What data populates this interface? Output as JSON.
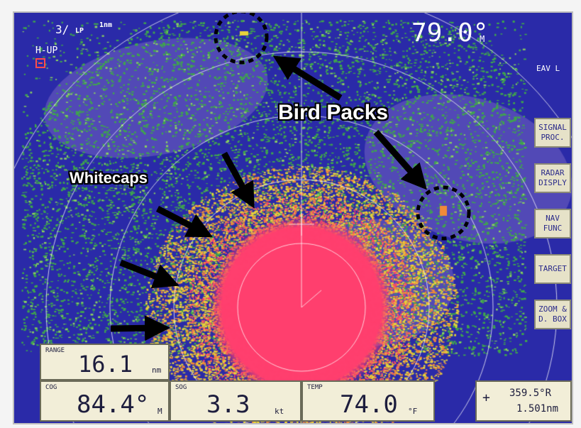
{
  "header": {
    "range_code": "3/",
    "pulse": "LP",
    "range_scale": "1nm",
    "mode": "H-UP",
    "mode_icon": "radar-mode-icon",
    "heading": "79.0°",
    "heading_unit": "M",
    "eav": "EAV L"
  },
  "menu": [
    {
      "line1": "SIGNAL",
      "line2": "PROC."
    },
    {
      "line1": "RADAR",
      "line2": "DISPLY"
    },
    {
      "line1": "NAV",
      "line2": "FUNC"
    },
    {
      "line1": "TARGET",
      "line2": ""
    },
    {
      "line1": "ZOOM &",
      "line2": "D. BOX"
    }
  ],
  "readouts": {
    "range": {
      "caption": "RANGE",
      "value": "16.1",
      "unit": "nm"
    },
    "cog": {
      "caption": "COG",
      "value": "84.4°",
      "unit": "M"
    },
    "sog": {
      "caption": "SOG",
      "value": "3.3",
      "unit": "kt"
    },
    "temp": {
      "caption": "TEMP",
      "value": "74.0",
      "unit": "°F"
    },
    "cursor": {
      "bearing": "359.5°R",
      "distance": "1.501nm"
    }
  },
  "annotations": {
    "bird_packs": "Bird Packs",
    "whitecaps": "Whitecaps"
  },
  "colors": {
    "background": "#2a2aa8",
    "echo_weak": "#3fa84a",
    "echo_medium": "#e8d23a",
    "echo_strong": "#ff3f6e"
  }
}
